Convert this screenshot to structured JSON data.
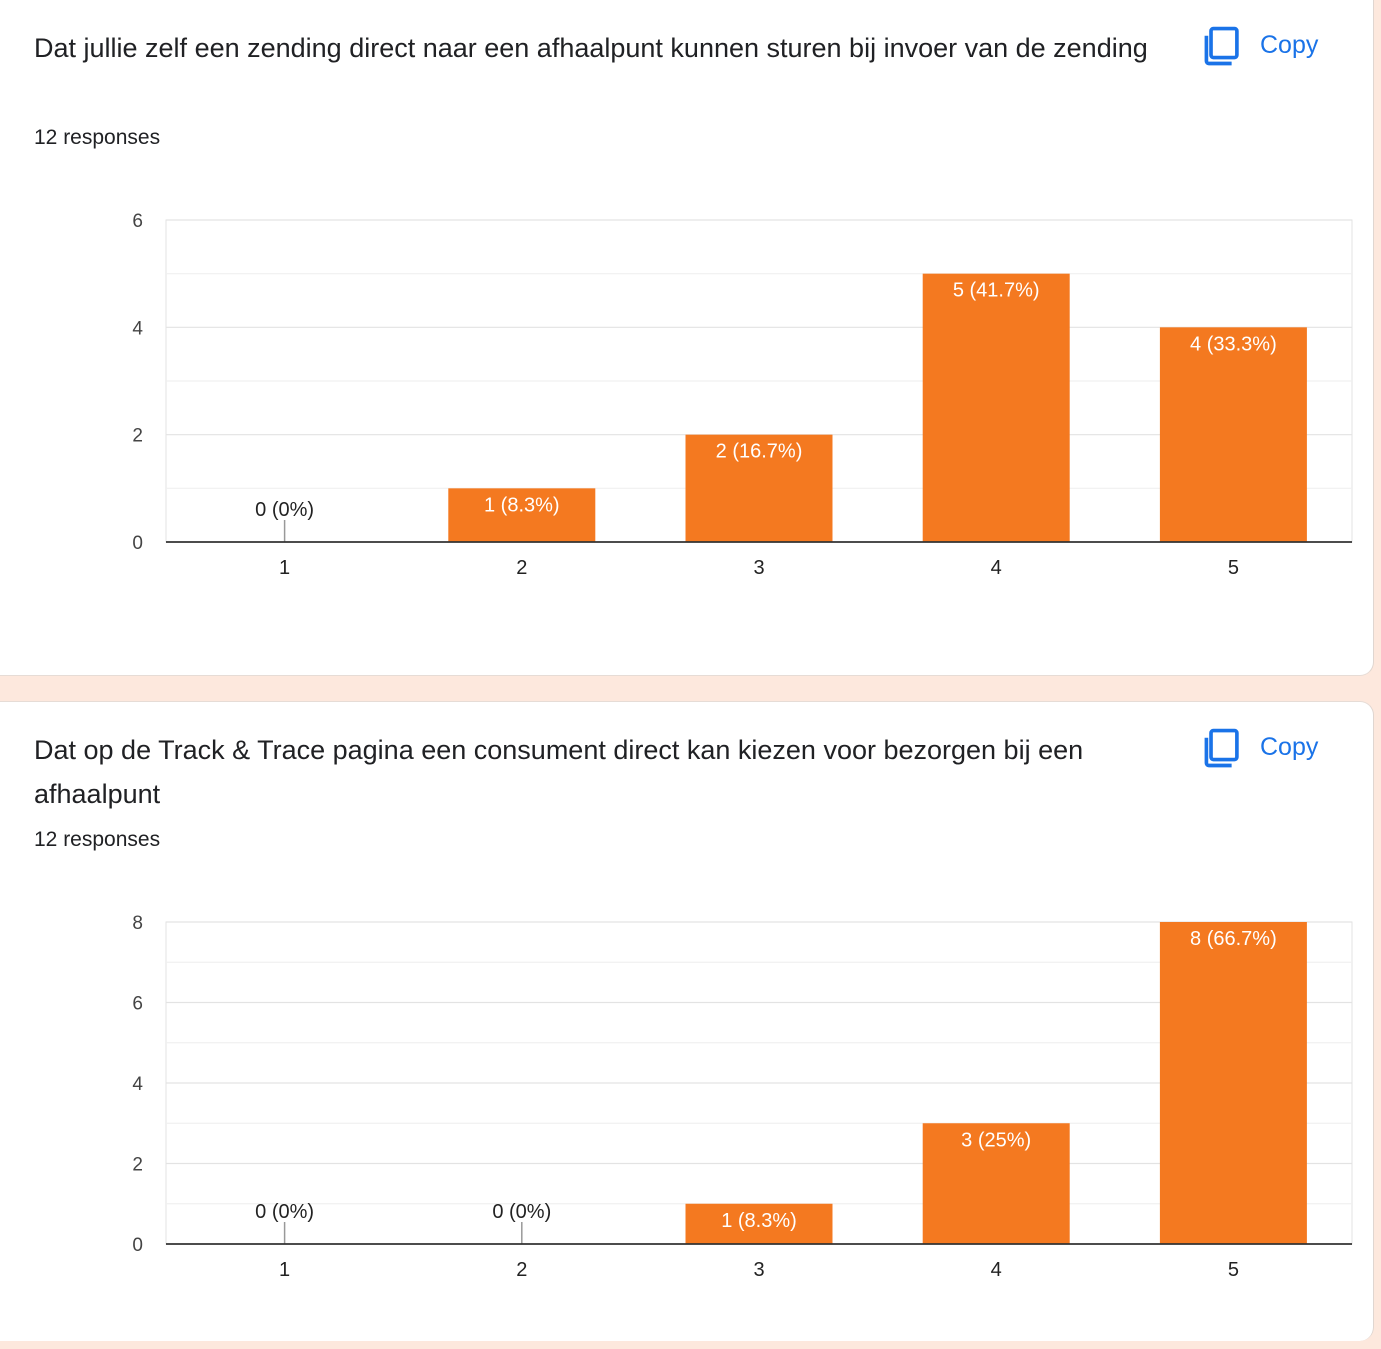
{
  "copy_label": "Copy",
  "charts": [
    {
      "question": "Dat jullie zelf een zending direct naar een afhaalpunt kunnen sturen bij invoer van de zending",
      "responses": "12 responses"
    },
    {
      "question": "Dat op de Track & Trace pagina een consument direct kan kiezen voor bezorgen bij een afhaalpunt",
      "responses": "12 responses"
    }
  ],
  "colors": {
    "bar": "#f47920",
    "copy": "#1a73e8",
    "background": "#fde8dd"
  },
  "icons": {
    "copy": "copy-icon"
  },
  "chart_data": [
    {
      "type": "bar",
      "categories": [
        "1",
        "2",
        "3",
        "4",
        "5"
      ],
      "values": [
        0,
        1,
        2,
        5,
        4
      ],
      "data_labels": [
        "0 (0%)",
        "1 (8.3%)",
        "2 (16.7%)",
        "5 (41.7%)",
        "4 (33.3%)"
      ],
      "yticks": [
        0,
        2,
        4,
        6
      ],
      "ylim": [
        0,
        6
      ],
      "grid": true
    },
    {
      "type": "bar",
      "categories": [
        "1",
        "2",
        "3",
        "4",
        "5"
      ],
      "values": [
        0,
        0,
        1,
        3,
        8
      ],
      "data_labels": [
        "0 (0%)",
        "0 (0%)",
        "1 (8.3%)",
        "3 (25%)",
        "8 (66.7%)"
      ],
      "yticks": [
        0,
        2,
        4,
        6,
        8
      ],
      "ylim": [
        0,
        8
      ],
      "grid": true
    }
  ]
}
